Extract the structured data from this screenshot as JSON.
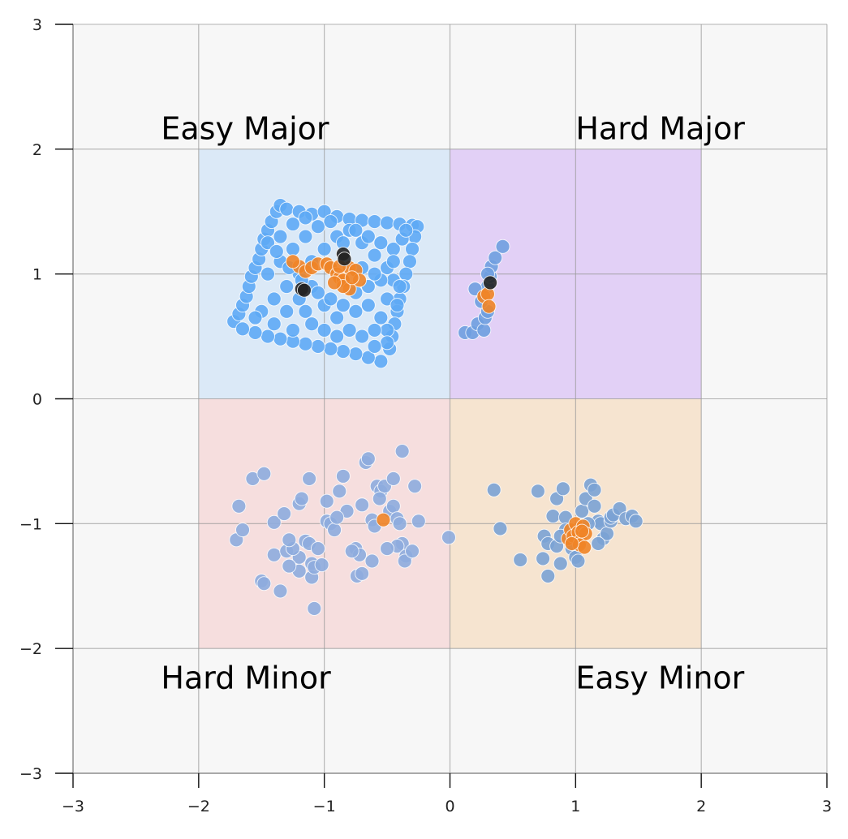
{
  "chart_data": {
    "type": "scatter",
    "title": "",
    "xlabel": "",
    "ylabel": "",
    "xlim": [
      -3,
      3
    ],
    "ylim": [
      -3,
      3
    ],
    "grid": true,
    "x_ticks": [
      -3,
      -2,
      -1,
      0,
      1,
      2,
      3
    ],
    "y_ticks": [
      -3,
      -2,
      -1,
      0,
      1,
      2,
      3
    ],
    "x_tick_labels": [
      "−3",
      "−2",
      "−1",
      "0",
      "1",
      "2",
      "3"
    ],
    "y_tick_labels": [
      "−3",
      "−2",
      "−1",
      "0",
      "1",
      "2",
      "3"
    ],
    "regions": [
      {
        "label": "Easy Major",
        "x": [
          -2,
          0
        ],
        "y": [
          0,
          2
        ],
        "color": "#cfe2f7",
        "label_pos": [
          -2.3,
          2.08
        ]
      },
      {
        "label": "Hard Major",
        "x": [
          0,
          2
        ],
        "y": [
          0,
          2
        ],
        "color": "#d8bff5",
        "label_pos": [
          1.0,
          2.08
        ]
      },
      {
        "label": "Hard Minor",
        "x": [
          -2,
          0
        ],
        "y": [
          -2,
          0
        ],
        "color": "#f5d3d3",
        "label_pos": [
          -2.3,
          -2.32
        ]
      },
      {
        "label": "Easy Minor",
        "x": [
          0,
          2
        ],
        "y": [
          -2,
          0
        ],
        "color": "#f5dcbf",
        "label_pos": [
          1.0,
          -2.32
        ]
      }
    ],
    "series": [
      {
        "color": "#5eaaf5",
        "points": [
          [
            -1.72,
            0.62
          ],
          [
            -1.68,
            0.68
          ],
          [
            -1.65,
            0.75
          ],
          [
            -1.62,
            0.82
          ],
          [
            -1.6,
            0.9
          ],
          [
            -1.58,
            0.98
          ],
          [
            -1.55,
            1.05
          ],
          [
            -1.52,
            1.12
          ],
          [
            -1.5,
            1.2
          ],
          [
            -1.48,
            1.28
          ],
          [
            -1.45,
            1.35
          ],
          [
            -1.42,
            1.42
          ],
          [
            -1.38,
            1.5
          ],
          [
            -1.35,
            1.55
          ],
          [
            -1.3,
            1.52
          ],
          [
            -1.2,
            1.5
          ],
          [
            -1.1,
            1.48
          ],
          [
            -1.0,
            1.5
          ],
          [
            -0.9,
            1.46
          ],
          [
            -0.8,
            1.44
          ],
          [
            -0.7,
            1.43
          ],
          [
            -0.6,
            1.42
          ],
          [
            -0.5,
            1.41
          ],
          [
            -0.4,
            1.4
          ],
          [
            -0.3,
            1.39
          ],
          [
            -0.26,
            1.38
          ],
          [
            -0.28,
            1.3
          ],
          [
            -0.3,
            1.2
          ],
          [
            -0.32,
            1.1
          ],
          [
            -0.35,
            1.0
          ],
          [
            -0.37,
            0.9
          ],
          [
            -0.4,
            0.8
          ],
          [
            -0.42,
            0.7
          ],
          [
            -0.44,
            0.6
          ],
          [
            -0.46,
            0.5
          ],
          [
            -0.48,
            0.4
          ],
          [
            -0.55,
            0.3
          ],
          [
            -0.65,
            0.33
          ],
          [
            -0.75,
            0.36
          ],
          [
            -0.85,
            0.38
          ],
          [
            -0.95,
            0.4
          ],
          [
            -1.05,
            0.42
          ],
          [
            -1.15,
            0.44
          ],
          [
            -1.25,
            0.46
          ],
          [
            -1.35,
            0.48
          ],
          [
            -1.45,
            0.5
          ],
          [
            -1.55,
            0.53
          ],
          [
            -1.65,
            0.56
          ],
          [
            -1.5,
            0.7
          ],
          [
            -1.4,
            0.8
          ],
          [
            -1.3,
            0.9
          ],
          [
            -1.2,
            1.0
          ],
          [
            -1.1,
            1.1
          ],
          [
            -1.0,
            1.2
          ],
          [
            -0.9,
            1.3
          ],
          [
            -0.8,
            1.35
          ],
          [
            -0.7,
            1.25
          ],
          [
            -0.6,
            1.15
          ],
          [
            -0.5,
            1.05
          ],
          [
            -0.45,
            0.95
          ],
          [
            -1.45,
            1.0
          ],
          [
            -1.35,
            1.1
          ],
          [
            -1.25,
            1.2
          ],
          [
            -1.15,
            1.3
          ],
          [
            -1.05,
            1.38
          ],
          [
            -0.95,
            1.05
          ],
          [
            -0.85,
            0.95
          ],
          [
            -0.75,
            0.85
          ],
          [
            -0.65,
            0.75
          ],
          [
            -0.55,
            0.65
          ],
          [
            -0.5,
            0.55
          ],
          [
            -1.55,
            0.65
          ],
          [
            -1.4,
            0.6
          ],
          [
            -1.3,
            0.7
          ],
          [
            -1.2,
            0.8
          ],
          [
            -1.1,
            0.9
          ],
          [
            -1.0,
            0.75
          ],
          [
            -0.9,
            0.65
          ],
          [
            -0.8,
            0.55
          ],
          [
            -0.7,
            0.5
          ],
          [
            -0.6,
            0.55
          ],
          [
            -0.5,
            0.8
          ],
          [
            -1.25,
            0.55
          ],
          [
            -1.1,
            0.6
          ],
          [
            -1.0,
            0.55
          ],
          [
            -0.9,
            0.5
          ],
          [
            -1.15,
            0.7
          ],
          [
            -1.05,
            0.85
          ],
          [
            -0.95,
            0.8
          ],
          [
            -0.85,
            0.75
          ],
          [
            -0.75,
            0.7
          ],
          [
            -0.65,
            0.9
          ],
          [
            -0.55,
            0.95
          ],
          [
            -1.35,
            1.3
          ],
          [
            -1.25,
            1.4
          ],
          [
            -1.15,
            1.45
          ],
          [
            -0.95,
            1.42
          ],
          [
            -0.85,
            1.25
          ],
          [
            -0.75,
            1.35
          ],
          [
            -0.65,
            1.3
          ],
          [
            -0.55,
            1.25
          ],
          [
            -0.45,
            1.2
          ],
          [
            -0.38,
            1.28
          ],
          [
            -0.35,
            1.35
          ],
          [
            -1.45,
            1.25
          ],
          [
            -1.38,
            1.18
          ],
          [
            -1.28,
            1.05
          ],
          [
            -1.18,
            0.95
          ],
          [
            -0.7,
            1.05
          ],
          [
            -0.6,
            1.0
          ],
          [
            -0.45,
            1.1
          ],
          [
            -0.4,
            0.9
          ],
          [
            -0.42,
            0.75
          ],
          [
            -0.5,
            0.45
          ],
          [
            -0.6,
            0.42
          ]
        ]
      },
      {
        "color": "#6f9fe0",
        "points": [
          [
            0.12,
            0.53
          ],
          [
            0.18,
            0.53
          ],
          [
            0.22,
            0.6
          ],
          [
            0.27,
            0.55
          ],
          [
            0.28,
            0.65
          ],
          [
            0.3,
            0.7
          ],
          [
            0.25,
            0.78
          ],
          [
            0.3,
            0.9
          ],
          [
            0.32,
            0.98
          ],
          [
            0.33,
            1.06
          ],
          [
            0.36,
            1.13
          ],
          [
            0.42,
            1.22
          ],
          [
            0.3,
            1.0
          ],
          [
            0.2,
            0.88
          ]
        ]
      },
      {
        "color": "#8eacde",
        "points": [
          [
            -1.68,
            -0.86
          ],
          [
            -1.7,
            -1.13
          ],
          [
            -1.65,
            -1.05
          ],
          [
            -1.57,
            -0.64
          ],
          [
            -1.48,
            -0.6
          ],
          [
            -1.4,
            -0.99
          ],
          [
            -1.5,
            -1.46
          ],
          [
            -1.48,
            -1.48
          ],
          [
            -1.4,
            -1.25
          ],
          [
            -1.3,
            -1.22
          ],
          [
            -1.32,
            -0.92
          ],
          [
            -1.2,
            -0.84
          ],
          [
            -1.18,
            -0.8
          ],
          [
            -1.12,
            -0.64
          ],
          [
            -1.15,
            -1.14
          ],
          [
            -1.2,
            -1.27
          ],
          [
            -1.2,
            -1.38
          ],
          [
            -1.1,
            -1.32
          ],
          [
            -1.1,
            -1.43
          ],
          [
            -1.08,
            -1.35
          ],
          [
            -1.08,
            -1.68
          ],
          [
            -1.35,
            -1.54
          ],
          [
            -1.25,
            -1.2
          ],
          [
            -1.12,
            -1.16
          ],
          [
            -1.05,
            -1.2
          ],
          [
            -0.98,
            -0.98
          ],
          [
            -0.98,
            -0.82
          ],
          [
            -0.95,
            -1.0
          ],
          [
            -0.92,
            -1.05
          ],
          [
            -0.88,
            -0.74
          ],
          [
            -0.85,
            -0.62
          ],
          [
            -0.82,
            -0.9
          ],
          [
            -0.75,
            -1.2
          ],
          [
            -0.72,
            -1.25
          ],
          [
            -0.74,
            -1.42
          ],
          [
            -0.7,
            -1.4
          ],
          [
            -0.67,
            -0.51
          ],
          [
            -0.65,
            -0.48
          ],
          [
            -0.62,
            -0.97
          ],
          [
            -0.6,
            -1.02
          ],
          [
            -0.58,
            -0.7
          ],
          [
            -0.55,
            -0.74
          ],
          [
            -0.52,
            -0.7
          ],
          [
            -0.48,
            -0.9
          ],
          [
            -0.45,
            -0.64
          ],
          [
            -0.45,
            -0.86
          ],
          [
            -0.42,
            -0.96
          ],
          [
            -0.4,
            -1.0
          ],
          [
            -0.38,
            -1.16
          ],
          [
            -0.42,
            -1.18
          ],
          [
            -0.35,
            -1.26
          ],
          [
            -0.36,
            -1.3
          ],
          [
            -0.3,
            -1.22
          ],
          [
            -0.25,
            -0.98
          ],
          [
            -0.28,
            -0.7
          ],
          [
            -0.38,
            -0.42
          ],
          [
            -0.01,
            -1.11
          ],
          [
            -0.62,
            -1.3
          ],
          [
            -1.02,
            -1.33
          ],
          [
            -1.28,
            -1.13
          ],
          [
            -1.28,
            -1.34
          ],
          [
            -0.78,
            -1.22
          ],
          [
            -0.5,
            -1.2
          ],
          [
            -0.56,
            -0.8
          ],
          [
            -0.7,
            -0.85
          ],
          [
            -0.9,
            -0.95
          ]
        ]
      },
      {
        "color": "#7ba2d4",
        "points": [
          [
            0.35,
            -0.73
          ],
          [
            0.4,
            -1.04
          ],
          [
            0.56,
            -1.29
          ],
          [
            0.7,
            -0.74
          ],
          [
            0.74,
            -1.28
          ],
          [
            0.78,
            -1.42
          ],
          [
            0.75,
            -1.1
          ],
          [
            0.78,
            -1.16
          ],
          [
            0.82,
            -0.94
          ],
          [
            0.85,
            -0.8
          ],
          [
            0.85,
            -1.18
          ],
          [
            0.88,
            -1.32
          ],
          [
            0.9,
            -0.72
          ],
          [
            0.92,
            -0.95
          ],
          [
            0.92,
            -1.05
          ],
          [
            0.97,
            -1.2
          ],
          [
            1.0,
            -1.27
          ],
          [
            1.02,
            -1.3
          ],
          [
            1.05,
            -0.9
          ],
          [
            1.08,
            -0.8
          ],
          [
            1.12,
            -0.69
          ],
          [
            1.15,
            -0.73
          ],
          [
            1.15,
            -0.86
          ],
          [
            1.18,
            -0.98
          ],
          [
            1.2,
            -1.0
          ],
          [
            1.22,
            -1.12
          ],
          [
            1.25,
            -1.08
          ],
          [
            1.28,
            -0.98
          ],
          [
            1.28,
            -0.95
          ],
          [
            1.3,
            -0.93
          ],
          [
            1.35,
            -0.88
          ],
          [
            1.4,
            -0.96
          ],
          [
            1.45,
            -0.94
          ],
          [
            1.48,
            -0.98
          ],
          [
            1.18,
            -1.16
          ],
          [
            0.88,
            -1.1
          ],
          [
            1.1,
            -1.0
          ]
        ]
      },
      {
        "color": "#ef8427",
        "points": [
          [
            -1.2,
            1.06
          ],
          [
            -1.25,
            1.1
          ],
          [
            -1.15,
            1.02
          ],
          [
            -1.1,
            1.05
          ],
          [
            -1.05,
            1.08
          ],
          [
            -0.98,
            1.08
          ],
          [
            -0.95,
            1.05
          ],
          [
            -0.9,
            1.0
          ],
          [
            -0.88,
            0.97
          ],
          [
            -0.85,
            0.95
          ],
          [
            -0.8,
            1.05
          ],
          [
            -0.8,
            0.88
          ],
          [
            -0.85,
            0.9
          ],
          [
            -0.75,
            1.03
          ],
          [
            -0.72,
            0.95
          ],
          [
            -0.92,
            0.93
          ],
          [
            -0.78,
            0.97
          ],
          [
            -0.88,
            1.06
          ],
          [
            0.27,
            0.82
          ],
          [
            0.3,
            0.84
          ],
          [
            0.31,
            0.74
          ],
          [
            -0.53,
            -0.97
          ],
          [
            0.94,
            -1.12
          ],
          [
            0.96,
            -1.05
          ],
          [
            0.98,
            -1.1
          ],
          [
            1.0,
            -1.0
          ],
          [
            1.02,
            -1.07
          ],
          [
            1.04,
            -1.14
          ],
          [
            1.06,
            -1.02
          ],
          [
            1.08,
            -1.08
          ],
          [
            1.03,
            -1.17
          ],
          [
            1.07,
            -1.19
          ],
          [
            0.97,
            -1.16
          ],
          [
            1.05,
            -1.06
          ]
        ]
      },
      {
        "color": "#222222",
        "points": [
          [
            -1.18,
            0.88
          ],
          [
            -1.16,
            0.87
          ],
          [
            -0.85,
            1.16
          ],
          [
            -0.84,
            1.12
          ],
          [
            0.32,
            0.93
          ]
        ]
      }
    ]
  }
}
